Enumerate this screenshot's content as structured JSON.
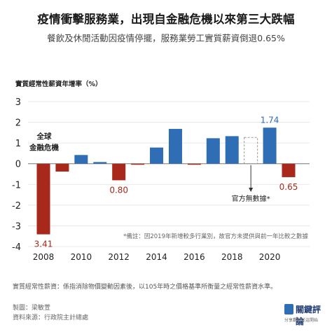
{
  "title": "疫情衝擊服務業，出現自金融危機以來第三大跌幅",
  "subtitle": "餐飲及休閒活動因疫情停擺，服務業勞工實質薪資倒退0.65%",
  "chart_data": {
    "type": "bar",
    "ylabel": "實質經常性薪資年增率（%）",
    "ylim": [
      -4,
      3
    ],
    "yticks": [
      3,
      2,
      1,
      0,
      -1,
      -2,
      -3,
      -4
    ],
    "x_range": [
      2008,
      2021
    ],
    "xtick_labels": [
      "2008",
      "2010",
      "2012",
      "2014",
      "2016",
      "2018",
      "2020"
    ],
    "grid": "horizontal",
    "x": [
      2008,
      2009,
      2010,
      2011,
      2012,
      2013,
      2014,
      2015,
      2016,
      2017,
      2018,
      2019,
      2020,
      2021
    ],
    "values": [
      -3.41,
      -0.38,
      0.42,
      0.08,
      -0.8,
      -0.05,
      0.78,
      1.68,
      -0.05,
      1.23,
      1.33,
      null,
      1.74,
      -0.65
    ],
    "colors": {
      "positive": "#2f6db5",
      "negative": "#a8291b",
      "missing_outline": "#9a9a9a"
    },
    "data_labels": [
      {
        "year": 2008,
        "text": "3.41",
        "color": "#a8291b"
      },
      {
        "year": 2012,
        "text": "0.80",
        "color": "#a8291b"
      },
      {
        "year": 2020,
        "text": "1.74",
        "color": "#2f6db5"
      },
      {
        "year": 2021,
        "text": "0.65",
        "color": "#a8291b"
      }
    ],
    "annotations": {
      "crisis_line1": "全球",
      "crisis_line2": "金融危機",
      "missing": "官方無數據*",
      "note": "*備註：因2019年新增較多行業別，故官方未提供與前一年比較之數據"
    }
  },
  "footnote": "實質經常性薪資：係指消除物價變動因素後，以105年時之價格基準所衡量之經常性薪資水準。",
  "credits": {
    "producer": "製圖：梁敏萱",
    "source": "資料來源：行政院主計總處"
  },
  "logo": {
    "name": "關鍵評論",
    "tagline": "分享觀點從這開始"
  }
}
